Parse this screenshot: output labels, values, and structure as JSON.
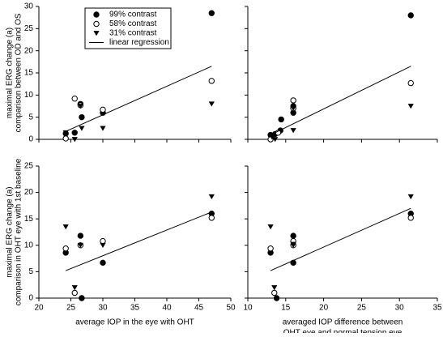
{
  "chart_data": [
    {
      "type": "scatter",
      "ylabel": [
        "maximal ERG change (a)",
        "comparison between OD and OS"
      ],
      "xlim": [
        20,
        50
      ],
      "xticks": [
        20,
        25,
        30,
        35,
        40,
        45,
        50
      ],
      "show_xtick_labels": false,
      "ylim": [
        0,
        30
      ],
      "yticks": [
        0,
        5,
        10,
        15,
        20,
        25,
        30
      ],
      "show_ytick_labels": true,
      "legend": "upper-left",
      "series": [
        {
          "name": "99% contrast",
          "marker": "filled-circle",
          "x": [
            24.2,
            25.6,
            26.5,
            26.7,
            30,
            47
          ],
          "values": [
            1.3,
            1.5,
            8,
            5,
            6,
            28.5
          ]
        },
        {
          "name": "58% contrast",
          "marker": "open-circle",
          "x": [
            24.2,
            25.6,
            26.5,
            30,
            47
          ],
          "values": [
            0.2,
            9.2,
            7.7,
            6.7,
            13.2
          ]
        },
        {
          "name": "31% contrast",
          "marker": "triangle",
          "x": [
            24.2,
            25.6,
            26.5,
            26.7,
            30,
            47
          ],
          "values": [
            1.5,
            0,
            7.5,
            2.5,
            2.5,
            8
          ]
        },
        {
          "name": "linear regression",
          "marker": "line",
          "x": [
            24.2,
            47
          ],
          "values": [
            1.8,
            16.5
          ]
        }
      ]
    },
    {
      "type": "scatter",
      "xlim": [
        10,
        35
      ],
      "xticks": [
        10,
        15,
        20,
        25,
        30,
        35
      ],
      "show_xtick_labels": false,
      "ylim": [
        0,
        30
      ],
      "yticks": [
        0,
        5,
        10,
        15,
        20,
        25,
        30
      ],
      "show_ytick_labels": false,
      "series": [
        {
          "marker": "filled-circle",
          "x": [
            13,
            13.6,
            14.3,
            14.4,
            16,
            16,
            31.5
          ],
          "values": [
            1,
            1.2,
            2,
            4.5,
            7.5,
            6,
            28
          ]
        },
        {
          "marker": "open-circle",
          "x": [
            13,
            14,
            16,
            16,
            31.5
          ],
          "values": [
            0,
            1.5,
            8.8,
            7,
            12.7
          ]
        },
        {
          "marker": "triangle",
          "x": [
            13.2,
            13.6,
            16,
            16,
            31.5
          ],
          "values": [
            0.5,
            0,
            7,
            2,
            7.5
          ]
        },
        {
          "marker": "line",
          "x": [
            13,
            31.5
          ],
          "values": [
            1,
            16.5
          ]
        }
      ]
    },
    {
      "type": "scatter",
      "ylabel": [
        "maximal ERG change (a)",
        "comparison in OHT eye with 1st baseline"
      ],
      "xlabel": [
        "average IOP in the eye with OHT"
      ],
      "xlim": [
        20,
        50
      ],
      "xticks": [
        20,
        25,
        30,
        35,
        40,
        45,
        50
      ],
      "show_xtick_labels": true,
      "ylim": [
        0,
        25
      ],
      "yticks": [
        0,
        5,
        10,
        15,
        20,
        25
      ],
      "show_ytick_labels": true,
      "series": [
        {
          "marker": "filled-circle",
          "x": [
            24.2,
            26.5,
            26.7,
            30,
            47
          ],
          "values": [
            8.6,
            11.8,
            0,
            6.7,
            16
          ]
        },
        {
          "marker": "open-circle",
          "x": [
            24.2,
            25.6,
            26.5,
            30,
            47
          ],
          "values": [
            9.4,
            1,
            10,
            10.8,
            15.2
          ]
        },
        {
          "marker": "triangle",
          "x": [
            24.2,
            25.6,
            26.5,
            30,
            47
          ],
          "values": [
            13.5,
            2,
            10,
            10,
            19.2
          ]
        },
        {
          "marker": "line",
          "x": [
            24.2,
            47
          ],
          "values": [
            5.2,
            16.3
          ]
        }
      ]
    },
    {
      "type": "scatter",
      "xlabel": [
        "averaged IOP difference between",
        "OHT eye and normal tension eye"
      ],
      "xlim": [
        10,
        35
      ],
      "xticks": [
        10,
        15,
        20,
        25,
        30,
        35
      ],
      "show_xtick_labels": true,
      "ylim": [
        0,
        25
      ],
      "yticks": [
        0,
        5,
        10,
        15,
        20,
        25
      ],
      "show_ytick_labels": false,
      "series": [
        {
          "marker": "filled-circle",
          "x": [
            13,
            13.8,
            16,
            16,
            31.5
          ],
          "values": [
            8.6,
            0,
            11.8,
            6.7,
            16
          ]
        },
        {
          "marker": "open-circle",
          "x": [
            13,
            13.5,
            16,
            16,
            31.5
          ],
          "values": [
            9.4,
            1,
            10.8,
            10,
            15.2
          ]
        },
        {
          "marker": "triangle",
          "x": [
            13,
            13.5,
            16,
            16,
            31.5
          ],
          "values": [
            13.5,
            2,
            10,
            10.2,
            19.2
          ]
        },
        {
          "marker": "line",
          "x": [
            13,
            31.5
          ],
          "values": [
            5.2,
            17
          ]
        }
      ]
    }
  ]
}
